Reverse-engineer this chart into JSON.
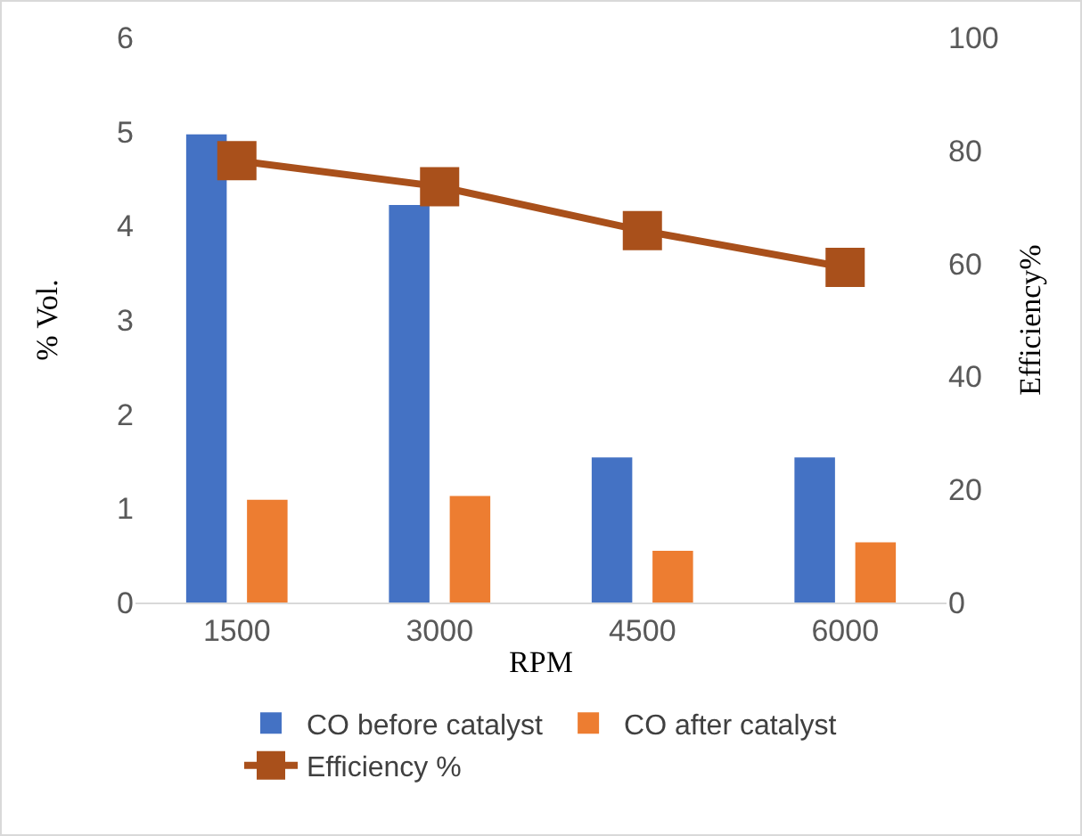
{
  "chart_data": {
    "type": "bar",
    "xlabel": "RPM",
    "ylabel": "% Vol.",
    "y2label": "Efficiency%",
    "categories": [
      "1500",
      "3000",
      "4500",
      "6000"
    ],
    "series": [
      {
        "name": "CO before catalyst",
        "color": "#4472c4",
        "values": [
          4.97,
          4.22,
          1.54,
          1.54
        ]
      },
      {
        "name": "CO after catalyst",
        "color": "#ed7d31",
        "values": [
          1.09,
          1.13,
          0.55,
          0.64
        ]
      },
      {
        "name": "Efficiency %",
        "type": "line",
        "axis": "y2",
        "color": "#a9501b",
        "marker": "square",
        "values": [
          78.2,
          73.6,
          65.8,
          59.3
        ]
      }
    ],
    "ylim": [
      0,
      6
    ],
    "yticks": [
      0,
      1,
      2,
      3,
      4,
      5,
      6
    ],
    "y2lim": [
      0,
      100
    ],
    "y2ticks": [
      0,
      20,
      40,
      60,
      80,
      100
    ],
    "legend": "bottom"
  }
}
